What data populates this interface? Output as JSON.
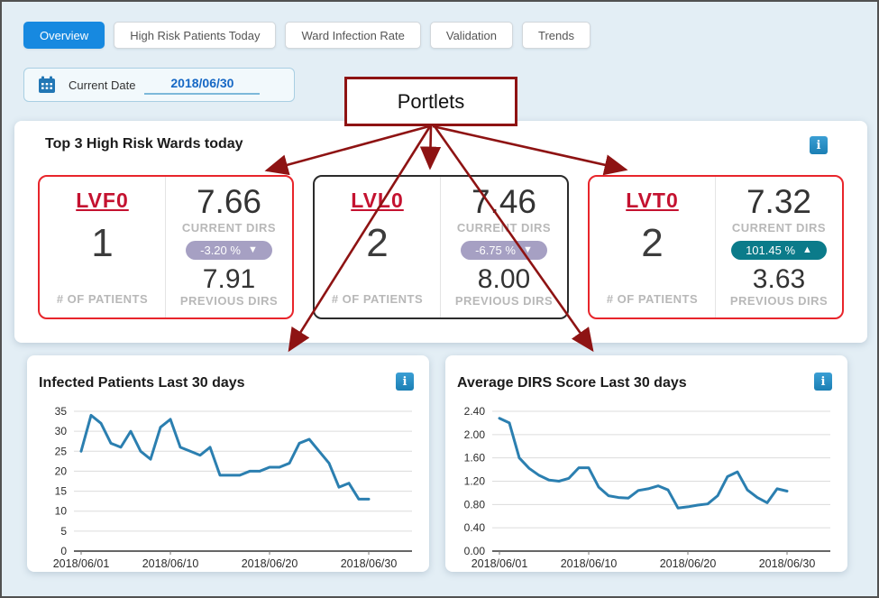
{
  "tabs": [
    {
      "label": "Overview",
      "active": true
    },
    {
      "label": "High Risk Patients Today",
      "active": false
    },
    {
      "label": "Ward Infection Rate",
      "active": false
    },
    {
      "label": "Validation",
      "active": false
    },
    {
      "label": "Trends",
      "active": false
    }
  ],
  "date_picker": {
    "label": "Current Date",
    "value": "2018/06/30"
  },
  "annotation": {
    "label": "Portlets"
  },
  "icons": {
    "info_glyph": "i"
  },
  "colors": {
    "accent_blue": "#1789e0",
    "card_border_red": "#e8252b",
    "card_border_dark": "#2b2b2b",
    "badge_down": "#a6a0c3",
    "badge_up": "#0b7b8a",
    "annotation_red": "#8e1313",
    "chart_line": "#2b7fb0"
  },
  "wards_panel": {
    "title": "Top 3 High Risk Wards today",
    "cards": [
      {
        "ward": "LVF0",
        "patients": "1",
        "patients_label": "# OF PATIENTS",
        "current": "7.66",
        "current_label": "CURRENT DIRS",
        "change": "-3.20 %",
        "arrow": "▼",
        "previous": "7.91",
        "previous_label": "PREVIOUS DIRS",
        "border_color": "#e8252b",
        "badge_color": "#a6a0c3"
      },
      {
        "ward": "LVL0",
        "patients": "2",
        "patients_label": "# OF PATIENTS",
        "current": "7.46",
        "current_label": "CURRENT DIRS",
        "change": "-6.75 %",
        "arrow": "▼",
        "previous": "8.00",
        "previous_label": "PREVIOUS DIRS",
        "border_color": "#2b2b2b",
        "badge_color": "#a6a0c3"
      },
      {
        "ward": "LVT0",
        "patients": "2",
        "patients_label": "# OF PATIENTS",
        "current": "7.32",
        "current_label": "CURRENT DIRS",
        "change": "101.45 %",
        "arrow": "▲",
        "previous": "3.63",
        "previous_label": "PREVIOUS DIRS",
        "border_color": "#e8252b",
        "badge_color": "#0b7b8a"
      }
    ]
  },
  "chart_data": [
    {
      "type": "line",
      "title": "Infected Patients Last 30 days",
      "xlabel": "",
      "ylabel": "",
      "grid": true,
      "legend": false,
      "line_color": "#2b7fb0",
      "ylim": [
        0,
        35
      ],
      "yticks": [
        0,
        5,
        10,
        15,
        20,
        25,
        30,
        35
      ],
      "y_tick_labels": [
        "0",
        "5",
        "10",
        "15",
        "20",
        "25",
        "30",
        "35"
      ],
      "x_ticks": [
        {
          "label": "2018/06/01",
          "index": 0
        },
        {
          "label": "2018/06/10",
          "index": 9
        },
        {
          "label": "2018/06/20",
          "index": 19
        },
        {
          "label": "2018/06/30",
          "index": 29
        }
      ],
      "dates": [
        "2018/06/01",
        "2018/06/02",
        "2018/06/03",
        "2018/06/04",
        "2018/06/05",
        "2018/06/06",
        "2018/06/07",
        "2018/06/08",
        "2018/06/09",
        "2018/06/10",
        "2018/06/11",
        "2018/06/12",
        "2018/06/13",
        "2018/06/14",
        "2018/06/15",
        "2018/06/16",
        "2018/06/17",
        "2018/06/18",
        "2018/06/19",
        "2018/06/20",
        "2018/06/21",
        "2018/06/22",
        "2018/06/23",
        "2018/06/24",
        "2018/06/25",
        "2018/06/26",
        "2018/06/27",
        "2018/06/28",
        "2018/06/29",
        "2018/06/30"
      ],
      "values": [
        25,
        34,
        32,
        27,
        26,
        30,
        25,
        23,
        31,
        33,
        26,
        25,
        24,
        26,
        19,
        19,
        19,
        20,
        20,
        21,
        21,
        22,
        27,
        28,
        25,
        22,
        16,
        17,
        13,
        13
      ]
    },
    {
      "type": "line",
      "title": "Average DIRS Score Last 30 days",
      "xlabel": "",
      "ylabel": "",
      "grid": true,
      "legend": false,
      "line_color": "#2b7fb0",
      "ylim": [
        0,
        2.4
      ],
      "yticks": [
        0,
        0.4,
        0.8,
        1.2,
        1.6,
        2.0,
        2.4
      ],
      "y_tick_labels": [
        "0.00",
        "0.40",
        "0.80",
        "1.20",
        "1.60",
        "2.00",
        "2.40"
      ],
      "x_ticks": [
        {
          "label": "2018/06/01",
          "index": 0
        },
        {
          "label": "2018/06/10",
          "index": 9
        },
        {
          "label": "2018/06/20",
          "index": 19
        },
        {
          "label": "2018/06/30",
          "index": 29
        }
      ],
      "dates": [
        "2018/06/01",
        "2018/06/02",
        "2018/06/03",
        "2018/06/04",
        "2018/06/05",
        "2018/06/06",
        "2018/06/07",
        "2018/06/08",
        "2018/06/09",
        "2018/06/10",
        "2018/06/11",
        "2018/06/12",
        "2018/06/13",
        "2018/06/14",
        "2018/06/15",
        "2018/06/16",
        "2018/06/17",
        "2018/06/18",
        "2018/06/19",
        "2018/06/20",
        "2018/06/21",
        "2018/06/22",
        "2018/06/23",
        "2018/06/24",
        "2018/06/25",
        "2018/06/26",
        "2018/06/27",
        "2018/06/28",
        "2018/06/29",
        "2018/06/30"
      ],
      "values": [
        2.28,
        2.2,
        1.6,
        1.42,
        1.3,
        1.22,
        1.2,
        1.25,
        1.43,
        1.43,
        1.1,
        0.95,
        0.92,
        0.91,
        1.04,
        1.07,
        1.12,
        1.05,
        0.74,
        0.76,
        0.79,
        0.81,
        0.95,
        1.28,
        1.36,
        1.05,
        0.92,
        0.83,
        1.07,
        1.03
      ]
    }
  ]
}
